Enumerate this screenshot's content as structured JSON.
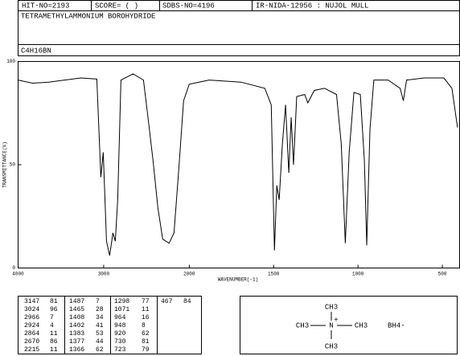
{
  "header": {
    "hit_no": "HIT-NO=2193",
    "score": "SCORE=  (   )",
    "sdbs_no": "SDBS-NO=4196",
    "ir_code": "IR-NIDA-12956 : NUJOL MULL",
    "compound": "TETRAMETHYLAMMONIUM BOROHYDRIDE",
    "formula": "C4H16BN"
  },
  "chart_data": {
    "type": "line",
    "color": "#000000",
    "x_label": "WAVENUMBER(-1)",
    "y_label": "TRANSMITTANCE(%)",
    "xlim": [
      4000,
      400
    ],
    "x_scale_change": 2000,
    "xticks": [
      4000,
      3000,
      2000,
      1500,
      1000,
      500
    ],
    "ylim": [
      0,
      100
    ],
    "yticks": [
      0,
      50,
      100
    ],
    "x": [
      4000,
      3831,
      3643,
      3268,
      3080,
      3033,
      3005,
      2967,
      2930,
      2892,
      2864,
      2836,
      2798,
      2657,
      2535,
      2488,
      2423,
      2366,
      2310,
      2235,
      2178,
      2122,
      2066,
      2000,
      1882,
      1693,
      1552,
      1514,
      1495,
      1481,
      1467,
      1448,
      1429,
      1410,
      1396,
      1382,
      1363,
      1316,
      1297,
      1259,
      1198,
      1127,
      1099,
      1075,
      1052,
      1024,
      986,
      962,
      948,
      929,
      906,
      821,
      750,
      731,
      712,
      608,
      491,
      443,
      410
    ],
    "values": [
      91,
      89.5,
      90,
      92,
      91.5,
      44,
      56,
      13,
      6,
      17,
      13,
      33,
      91,
      94,
      91,
      75,
      52,
      29,
      14,
      12,
      17,
      48,
      81,
      89,
      91,
      90,
      87,
      79,
      8.5,
      40,
      33,
      60,
      79,
      46,
      73,
      50,
      83,
      84,
      80,
      86,
      87,
      84,
      60,
      12,
      56,
      85,
      84,
      52,
      11,
      67,
      91,
      91,
      87,
      81,
      91,
      92,
      92,
      87,
      68
    ]
  },
  "peak_table": {
    "columns": [
      [
        [
          3147,
          81
        ],
        [
          3024,
          96
        ],
        [
          2966,
          7
        ],
        [
          2924,
          4
        ],
        [
          2864,
          11
        ],
        [
          2670,
          86
        ],
        [
          2215,
          11
        ]
      ],
      [
        [
          1487,
          7
        ],
        [
          1465,
          28
        ],
        [
          1408,
          34
        ],
        [
          1402,
          41
        ],
        [
          1383,
          53
        ],
        [
          1377,
          44
        ],
        [
          1366,
          62
        ]
      ],
      [
        [
          1298,
          77
        ],
        [
          1071,
          11
        ],
        [
          964,
          16
        ],
        [
          948,
          8
        ],
        [
          920,
          62
        ],
        [
          730,
          81
        ],
        [
          723,
          79
        ]
      ],
      [
        [
          467,
          84
        ]
      ]
    ]
  },
  "structure": {
    "top": "CH3",
    "left": "CH3",
    "center": "N",
    "charge": "+",
    "right": "CH3",
    "bottom": "CH3",
    "anion": "BH4-"
  }
}
